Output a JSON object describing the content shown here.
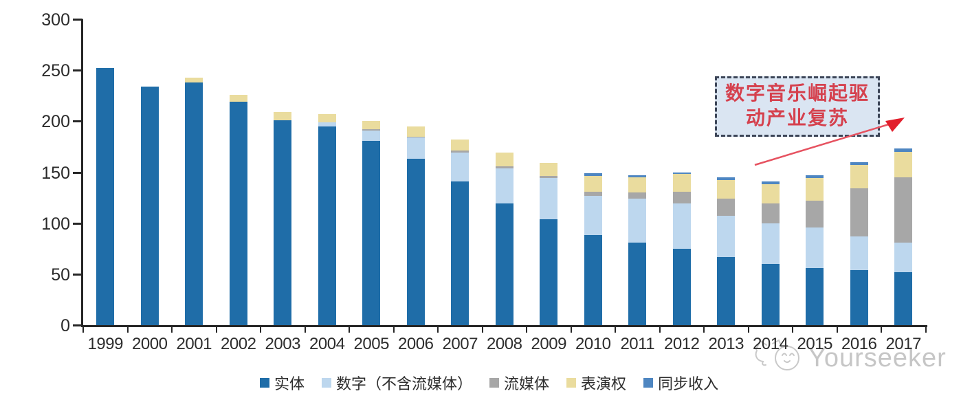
{
  "watermark": {
    "brand": "Yourseeker"
  },
  "annotation": {
    "line1": "数字音乐崛起驱",
    "line2": "动产业复苏",
    "full_text": "数字音乐崛起驱动产业复苏",
    "text_color": "#d5414e",
    "box_fill": "#dae5f2",
    "box_border": "#3c4557",
    "arrow_color": "#e65260"
  },
  "chart_data": {
    "type": "bar",
    "stacked": true,
    "title": "",
    "xlabel": "",
    "ylabel": "",
    "ylim": [
      0,
      300
    ],
    "yticks": [
      0,
      50,
      100,
      150,
      200,
      250,
      300
    ],
    "grid": false,
    "legend_position": "bottom",
    "categories": [
      "1999",
      "2000",
      "2001",
      "2002",
      "2003",
      "2004",
      "2005",
      "2006",
      "2007",
      "2008",
      "2009",
      "2010",
      "2011",
      "2012",
      "2013",
      "2014",
      "2015",
      "2016",
      "2017"
    ],
    "series": [
      {
        "key": "physical",
        "name": "实体",
        "color": "#1f6da8",
        "values": [
          252,
          234,
          238,
          219,
          201,
          195,
          181,
          163,
          141,
          119,
          104,
          88,
          81,
          75,
          67,
          60,
          56,
          54,
          52
        ]
      },
      {
        "key": "digital-excl-streaming",
        "name": "数字（不含流媒体）",
        "color": "#bdd7ee",
        "values": [
          0,
          0,
          0,
          0,
          0,
          4,
          10,
          21,
          28,
          35,
          40,
          39,
          43,
          44,
          40,
          40,
          40,
          33,
          29
        ]
      },
      {
        "key": "streaming",
        "name": "流媒体",
        "color": "#a7a7a7",
        "values": [
          0,
          0,
          0,
          0,
          0,
          0,
          1,
          1,
          2,
          2,
          2,
          4,
          6,
          12,
          17,
          19,
          26,
          47,
          64
        ]
      },
      {
        "key": "performance-rights",
        "name": "表演权",
        "color": "#eadc9e",
        "values": [
          0,
          0,
          5,
          7,
          8,
          8,
          8,
          10,
          11,
          13,
          13,
          15,
          15,
          17,
          18,
          19,
          22,
          23,
          25
        ]
      },
      {
        "key": "sync-revenue",
        "name": "同步收入",
        "color": "#4e86c1",
        "values": [
          0,
          0,
          0,
          0,
          0,
          0,
          0,
          0,
          0,
          0,
          0,
          3,
          2,
          2,
          3,
          3,
          3,
          3,
          3
        ]
      }
    ]
  }
}
